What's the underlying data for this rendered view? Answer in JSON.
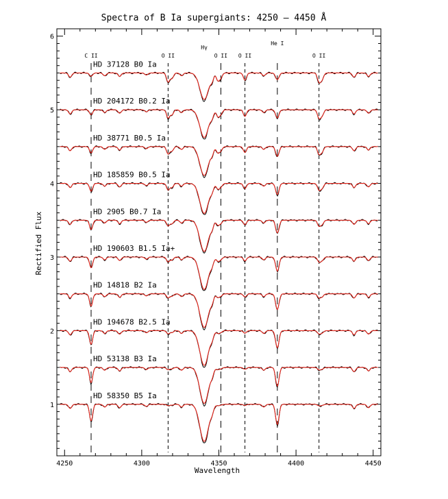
{
  "chart_data": {
    "type": "line",
    "title": "Spectra of B Ia supergiants: 4250 – 4450 Å",
    "xlabel": "Wavelength",
    "ylabel": "Rectified Flux",
    "xlim": [
      4245,
      4455
    ],
    "ylim": [
      0.3,
      6.1
    ],
    "x_ticks": [
      4250,
      4300,
      4350,
      4400,
      4450
    ],
    "y_ticks": [
      1,
      2,
      3,
      4,
      5,
      6
    ],
    "grid": false,
    "colors": {
      "observed": "#000000",
      "model": "#e8281e"
    },
    "lines": [
      {
        "label": "C II",
        "x": 4267.2,
        "dash": "long"
      },
      {
        "label": "O II",
        "x": 4317.1,
        "dash": "short"
      },
      {
        "label": "Hγ",
        "x": 4340.5,
        "dash": "none"
      },
      {
        "label": "O II",
        "x": 4351.3,
        "dash": "long"
      },
      {
        "label": "O II",
        "x": 4366.9,
        "dash": "short"
      },
      {
        "label": "He I",
        "x": 4387.9,
        "dash": "long"
      },
      {
        "label": "O II",
        "x": 4414.9,
        "dash": "short"
      }
    ],
    "series": [
      {
        "name": "HD 37128 B0 Ia",
        "continuum": 5.5
      },
      {
        "name": "HD 204172 B0.2 Ia",
        "continuum": 5.0
      },
      {
        "name": "HD 38771 B0.5 Ia",
        "continuum": 4.5
      },
      {
        "name": "HD 185859 B0.5 Ia",
        "continuum": 4.0
      },
      {
        "name": "HD 2905 B0.7 Ia",
        "continuum": 3.5
      },
      {
        "name": "HD 190603 B1.5 Ia+",
        "continuum": 3.0
      },
      {
        "name": "HD 14818 B2 Ia",
        "continuum": 2.5
      },
      {
        "name": "HD 194678 B2.5 Ia",
        "continuum": 2.0
      },
      {
        "name": "HD 53138 B3 Ia",
        "continuum": 1.5
      },
      {
        "name": "HD 58350 B5 Ia",
        "continuum": 1.0
      }
    ]
  }
}
